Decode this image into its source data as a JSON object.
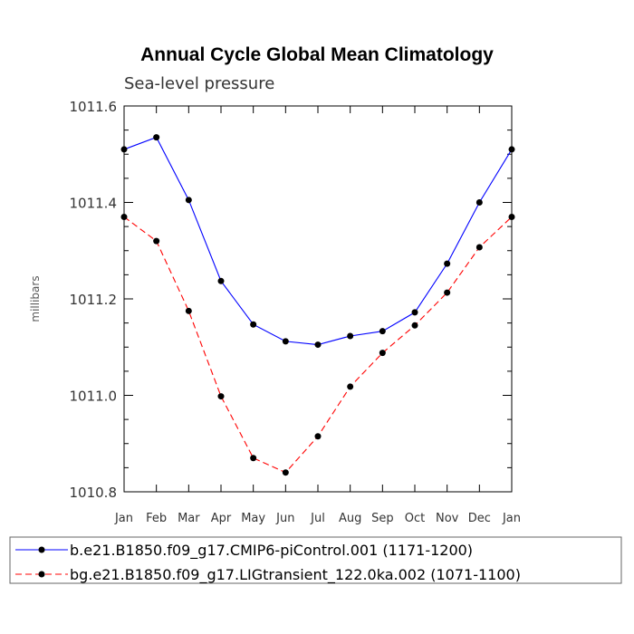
{
  "chart_data": {
    "type": "line",
    "title": "Annual Cycle Global Mean Climatology",
    "subtitle": "Sea-level pressure",
    "ylabel": "millibars",
    "xlabel": "",
    "ylim": [
      1010.8,
      1011.6
    ],
    "yticks": [
      "1010.8",
      "1011.0",
      "1011.2",
      "1011.4",
      "1011.6"
    ],
    "categories": [
      "Jan",
      "Feb",
      "Mar",
      "Apr",
      "May",
      "Jun",
      "Jul",
      "Aug",
      "Sep",
      "Oct",
      "Nov",
      "Dec",
      "Jan"
    ],
    "grid": false,
    "legend_position": "bottom",
    "series": [
      {
        "name": "b.e21.B1850.f09_g17.CMIP6-piControl.001 (1171-1200)",
        "color": "#0000ff",
        "dash": "solid",
        "marker": "filled-circle",
        "values": [
          1011.51,
          1011.535,
          1011.405,
          1011.237,
          1011.147,
          1011.112,
          1011.105,
          1011.123,
          1011.133,
          1011.172,
          1011.273,
          1011.4,
          1011.51
        ]
      },
      {
        "name": "bg.e21.B1850.f09_g17.LIGtransient_122.0ka.002 (1071-1100)",
        "color": "#ff0000",
        "dash": "dashed",
        "marker": "filled-circle",
        "values": [
          1011.37,
          1011.32,
          1011.175,
          1010.998,
          1010.87,
          1010.84,
          1010.915,
          1011.018,
          1011.088,
          1011.145,
          1011.213,
          1011.307,
          1011.37
        ]
      }
    ]
  }
}
